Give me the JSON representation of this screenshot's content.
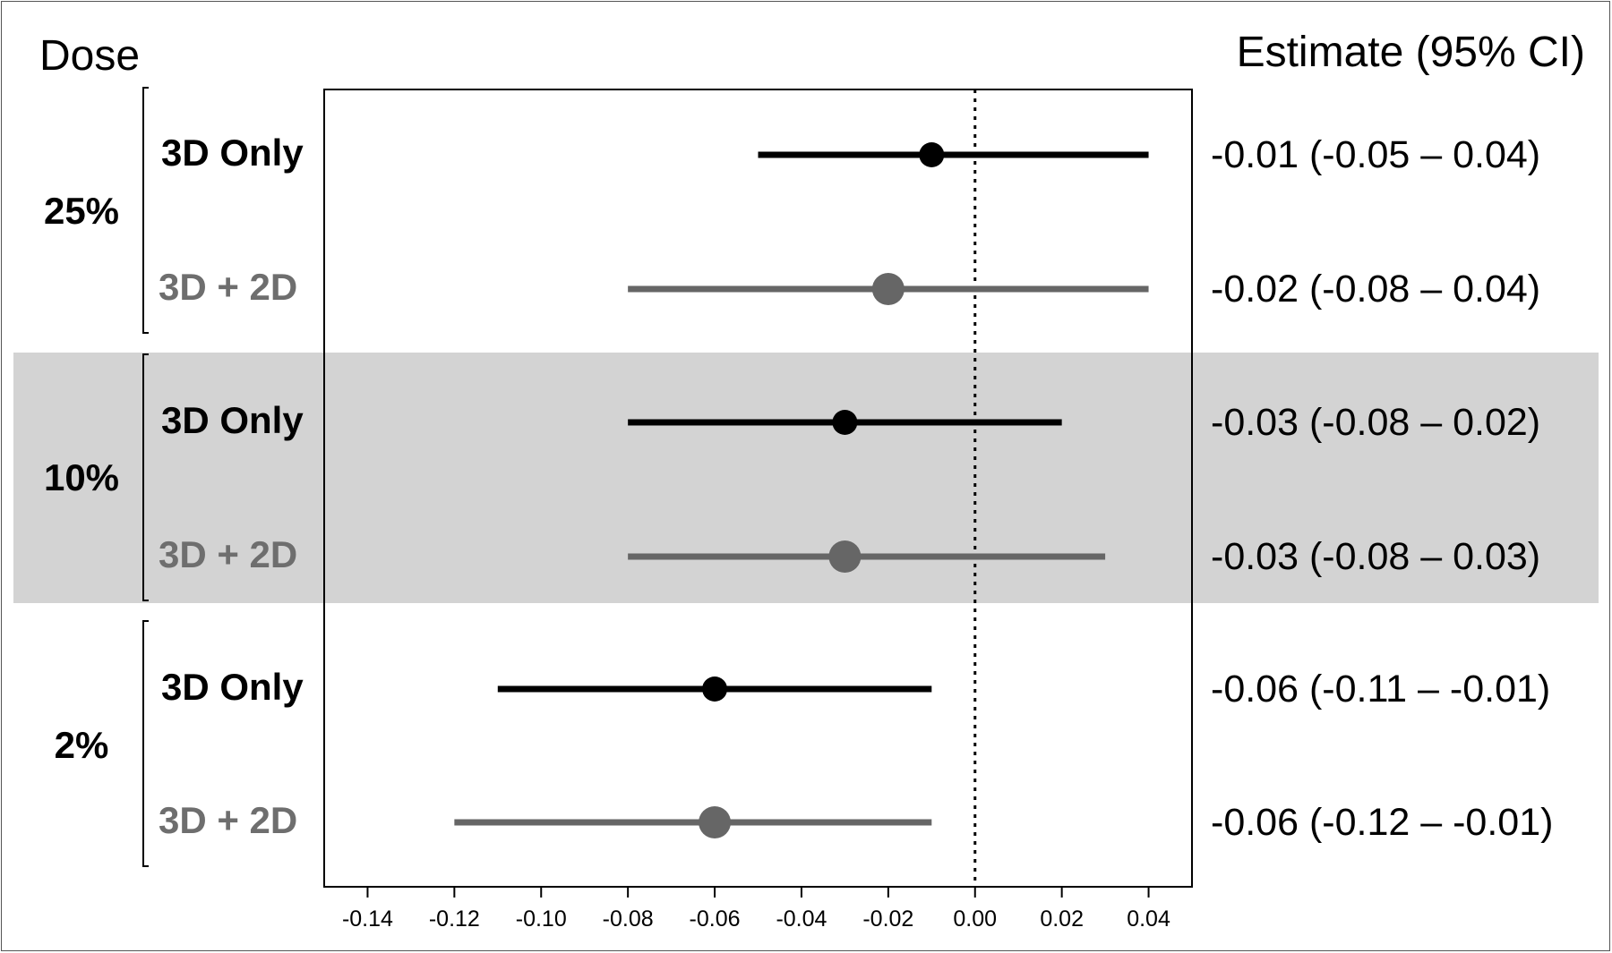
{
  "header": {
    "left": "Dose",
    "right": "Estimate (95% CI)"
  },
  "colors": {
    "3D Only": "#000000",
    "3D + 2D": "#666666",
    "shade": "#d3d3d3",
    "label_3d_2d": "#6e6e6e"
  },
  "chart_data": {
    "type": "forest",
    "xlim": [
      -0.15,
      0.05
    ],
    "x_ticks": [
      "-0.14",
      "-0.12",
      "-0.10",
      "-0.08",
      "-0.06",
      "-0.04",
      "-0.02",
      "0.00",
      "0.02",
      "0.04"
    ],
    "x_tick_values": [
      -0.14,
      -0.12,
      -0.1,
      -0.08,
      -0.06,
      -0.04,
      -0.02,
      0.0,
      0.02,
      0.04
    ],
    "reference_line": 0.0,
    "grid": false,
    "shaded_group": "10%",
    "groups": [
      {
        "dose": "25%",
        "rows": [
          {
            "label": "3D Only",
            "estimate": -0.01,
            "lower": -0.05,
            "upper": 0.04,
            "text": "-0.01 (-0.05 – 0.04)"
          },
          {
            "label": "3D + 2D",
            "estimate": -0.02,
            "lower": -0.08,
            "upper": 0.04,
            "text": "-0.02 (-0.08 – 0.04)"
          }
        ]
      },
      {
        "dose": "10%",
        "rows": [
          {
            "label": "3D Only",
            "estimate": -0.03,
            "lower": -0.08,
            "upper": 0.02,
            "text": "-0.03 (-0.08 – 0.02)"
          },
          {
            "label": "3D + 2D",
            "estimate": -0.03,
            "lower": -0.08,
            "upper": 0.03,
            "text": "-0.03 (-0.08 – 0.03)"
          }
        ]
      },
      {
        "dose": "2%",
        "rows": [
          {
            "label": "3D Only",
            "estimate": -0.06,
            "lower": -0.11,
            "upper": -0.01,
            "text": "-0.06 (-0.11 – -0.01)"
          },
          {
            "label": "3D + 2D",
            "estimate": -0.06,
            "lower": -0.12,
            "upper": -0.01,
            "text": "-0.06 (-0.12 – -0.01)"
          }
        ]
      }
    ]
  }
}
